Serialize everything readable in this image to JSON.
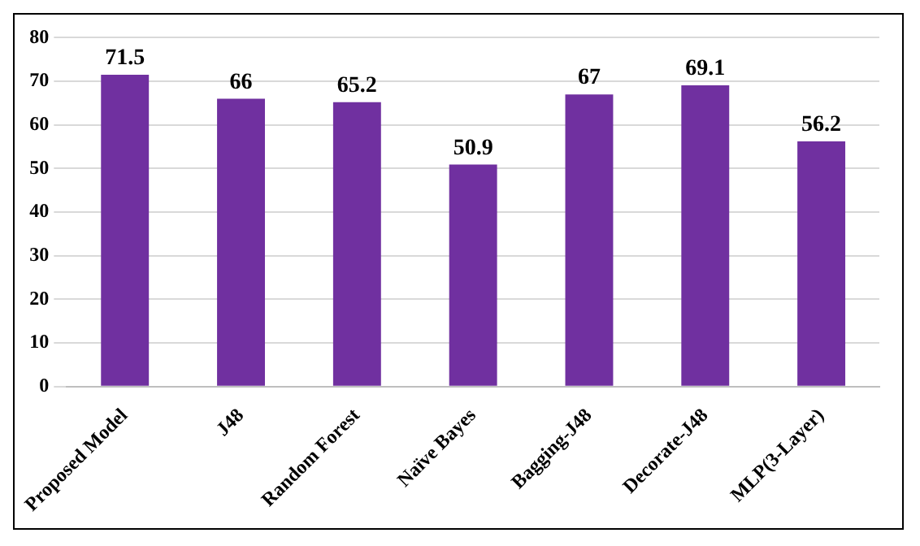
{
  "chart_data": {
    "type": "bar",
    "categories": [
      "Proposed Model",
      "J48",
      "Random Forest",
      "Naïve Bayes",
      "Bagging-J48",
      "Decorate-J48",
      "MLP(3-Layer)"
    ],
    "values": [
      71.5,
      66,
      65.2,
      50.9,
      67,
      69.1,
      56.2
    ],
    "color": "#7030a0",
    "ylim": [
      0,
      80
    ],
    "yticks": [
      0,
      10,
      20,
      30,
      40,
      50,
      60,
      70,
      80
    ],
    "grid": "y",
    "data_labels": true,
    "legend": false
  }
}
